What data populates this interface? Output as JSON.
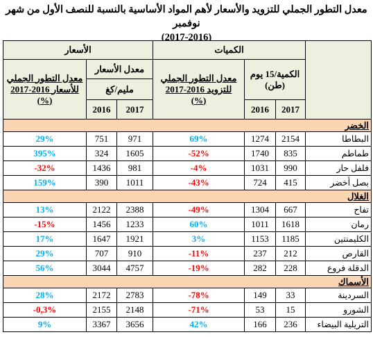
{
  "title": [
    "معدل التطور الجملي للتزويد والأسعار لأهم المواد الأساسية بالنسبة للنصف الأول من شهر نوفمبر",
    "(2017-2016)"
  ],
  "header": {
    "quantities": "الكميات",
    "prices": "الأسعار",
    "quantity_unit": [
      "الكمية/15 يوم",
      "(طن)"
    ],
    "quantity_change": [
      "معدل التطور الجملي",
      "للتزويد 2016-2017",
      "(%)"
    ],
    "price_average": "معدل الأسعار",
    "price_unit": "مليم/كغ",
    "price_change": [
      "معدل التطور الجملي",
      "للأسعار 2016-2017",
      "(%)"
    ],
    "years": [
      "2016",
      "2017"
    ]
  },
  "sections": [
    {
      "name": "الخضر",
      "rows": [
        {
          "product": "البطاطا",
          "cells": [
            2154,
            1274,
            "69%",
            971,
            751,
            "29%"
          ]
        },
        {
          "product": "طماطم",
          "cells": [
            835,
            1740,
            "-52%",
            1605,
            324,
            "395%"
          ]
        },
        {
          "product": "فلفل حار",
          "cells": [
            990,
            1031,
            "-4%",
            981,
            1436,
            "-32%"
          ]
        },
        {
          "product": "بصل أخضر",
          "cells": [
            415,
            724,
            "-43%",
            1011,
            390,
            "159%"
          ]
        }
      ]
    },
    {
      "name": "الغلال",
      "rows": [
        {
          "product": "تفاح",
          "cells": [
            667,
            1304,
            "-49%",
            2388,
            2122,
            "13%"
          ]
        },
        {
          "product": "رمان",
          "cells": [
            1618,
            1011,
            "60%",
            1233,
            1456,
            "-15%"
          ]
        },
        {
          "product": "الكليمنتين",
          "cells": [
            1185,
            1153,
            "3%",
            1921,
            1647,
            "17%"
          ]
        },
        {
          "product": "القارص",
          "cells": [
            212,
            237,
            "-11%",
            910,
            707,
            "29%"
          ]
        },
        {
          "product": "الدقلة فروع",
          "cells": [
            228,
            282,
            "-19%",
            4757,
            3044,
            "56%"
          ]
        }
      ]
    },
    {
      "name": "الأسماك",
      "rows": [
        {
          "product": "السردينة",
          "cells": [
            33,
            149,
            "-78%",
            2783,
            2172,
            "28%"
          ]
        },
        {
          "product": "الشورو",
          "cells": [
            15,
            53,
            "-71%",
            2148,
            2155,
            "-0,3%"
          ]
        },
        {
          "product": "التريلية البيضاء",
          "cells": [
            236,
            166,
            "42%",
            3656,
            3367,
            "9%"
          ]
        }
      ]
    }
  ]
}
